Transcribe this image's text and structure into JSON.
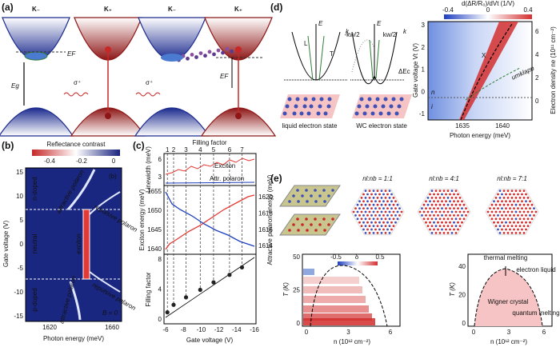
{
  "panel_a": {
    "label": "(a)",
    "valleys": [
      "K₋",
      "K₊",
      "K₋",
      "K₊"
    ],
    "fermi_1": "EF",
    "gap": "Eg",
    "polarization_1": "σ⁺",
    "polarization_2": "σ⁺",
    "fermi_2": "EF"
  },
  "panel_b": {
    "label": "(b)",
    "colorbar_title": "Reflectance contrast",
    "colorbar_ticks": [
      -0.4,
      -0.2,
      0
    ],
    "ylabel": "Gate voltage (V)",
    "yticks": [
      15,
      10,
      5,
      0,
      -5,
      -10,
      -15
    ],
    "xlabel": "Photon energy (meV)",
    "xticks": [
      1620,
      1660
    ],
    "regions": [
      "n-doped",
      "neutral",
      "p-doped"
    ],
    "features": [
      "attractive polaron",
      "repulsive polaron",
      "exciton",
      "repulsive polaron",
      "attractive polaron"
    ],
    "inset_label": "(b)",
    "field": "B = 0"
  },
  "panel_c": {
    "label": "(c)",
    "top_axis_label": "Filling factor",
    "top_ticks": [
      1,
      2,
      3,
      4,
      5,
      6,
      7
    ],
    "linewidth_label": "Linewidth (meV)",
    "linewidth_ticks": [
      6,
      3
    ],
    "legend": [
      "Exciton",
      "Attr. polaron"
    ],
    "exciton_label": "Exciton energy (meV)",
    "exciton_ticks": [
      1655,
      1650,
      1645,
      1640
    ],
    "polaron_label": "Attractive polaron energy (meV)",
    "polaron_ticks": [
      1620,
      1618,
      1616,
      1614
    ],
    "filling_label": "Filling factor",
    "filling_ticks": [
      8,
      4,
      0
    ],
    "xlabel": "Gate voltage (V)",
    "xticks": [
      -6,
      -8,
      -10,
      -12,
      -14,
      -16
    ],
    "points": {
      "x": [
        -6.2,
        -6.9,
        -8.3,
        -9.9,
        -11.4,
        -13.2,
        -14.6
      ],
      "y": [
        1,
        2,
        3,
        4,
        5,
        6,
        7
      ]
    }
  },
  "panel_d": {
    "label": "(d)",
    "schematic": [
      "E",
      "k",
      "L",
      "T",
      "E",
      "k",
      "-kw/2",
      "kw/2",
      "ΔEc"
    ],
    "states": [
      "liquid electron state",
      "WC electron state"
    ],
    "colorbar_title": "d(ΔR/R₀)/dVt (1/V)",
    "colorbar_ticks": [
      -0.4,
      0,
      0.4
    ],
    "ylabel": "Gate voltage Vt (V)",
    "yticks": [
      3,
      2,
      1,
      0,
      -1
    ],
    "y2label": "Electron density ne (10¹¹ cm⁻²)",
    "y2ticks": [
      6,
      4,
      2,
      0
    ],
    "xlabel": "Photon energy (meV)",
    "xticks": [
      1635,
      1640
    ],
    "annotations": [
      "X",
      "umklapp",
      "n",
      "i"
    ]
  },
  "panel_e": {
    "label": "(e)",
    "ratios": [
      "nl:nb = 1:1",
      "nl:nb = 4:1",
      "nl:nb = 7:1"
    ],
    "left": {
      "ylabel": "T (K)",
      "yticks": [
        50,
        25,
        0
      ],
      "xlabel": "n (10¹² cm⁻²)",
      "xticks": [
        0,
        3,
        6
      ],
      "colorbar_title": "δ",
      "colorbar_ticks": [
        -0.5,
        0.5
      ]
    },
    "right": {
      "ylabel": "T (K)",
      "yticks": [
        40,
        20,
        0
      ],
      "xlabel": "n (10¹² cm⁻²)",
      "xticks": [
        0,
        3,
        6
      ],
      "annotations": [
        "thermal melting",
        "electron liquid",
        "Wigner crystal",
        "quantum melting"
      ]
    }
  }
}
